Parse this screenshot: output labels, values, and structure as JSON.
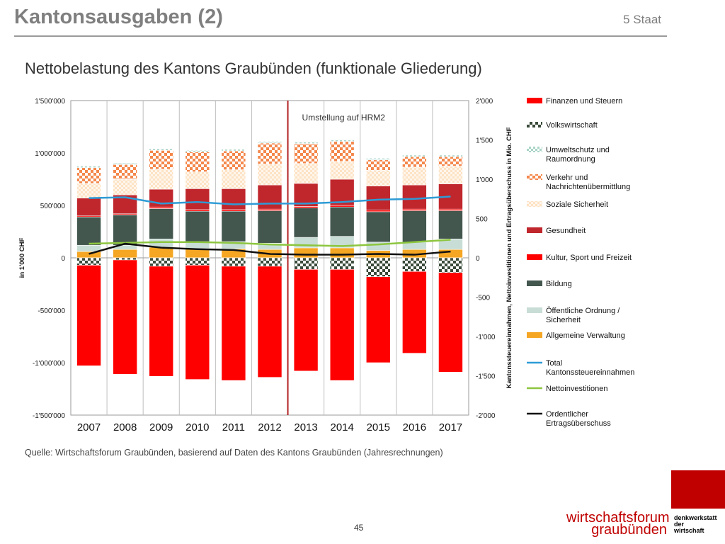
{
  "slide": {
    "title": "Kantonsausgaben (2)",
    "section": "5 Staat",
    "chart_title": "Nettobelastung des Kantons Graubünden (funktionale Gliederung)",
    "source": "Quelle: Wirtschaftsforum Graubünden, basierend auf Daten des Kantons Graubünden (Jahresrechnungen)",
    "page_number": "45"
  },
  "branding": {
    "line1": "wirtschaftsforum",
    "line2": "graubünden",
    "sub1": "denkwerkstatt",
    "sub2": "der",
    "sub3": "wirtschaft",
    "accent_color": "#c00000"
  },
  "chart_data": {
    "type": "bar",
    "stacked": true,
    "categories": [
      "2007",
      "2008",
      "2009",
      "2010",
      "2011",
      "2012",
      "2013",
      "2014",
      "2015",
      "2016",
      "2017"
    ],
    "ylabel": "in 1'000 CHF",
    "ylim": [
      -1500000,
      1500000
    ],
    "yticks": [
      "1'500'000",
      "1'000'000",
      "500'000",
      "0",
      "-500'000",
      "-1'000'000",
      "-1'500'000"
    ],
    "y2label": "Kantonssteuereinnahmen, Nettoinvestitionen und Ertragsüberschuss in Mio. CHF",
    "y2lim": [
      -2000,
      2000
    ],
    "y2ticks": [
      "2'000",
      "1'500",
      "1'000",
      "500",
      "0",
      "-500",
      "-1'000",
      "-1'500",
      "-2'000"
    ],
    "annotation": "Umstellung auf HRM2",
    "annotation_between": [
      "2012",
      "2013"
    ],
    "grid": "vertical",
    "legend_position": "right",
    "bar_series": [
      {
        "name": "Allgemeine Verwaltung",
        "color": "#f5a623",
        "pattern": "solid",
        "values": [
          60000,
          80000,
          100000,
          90000,
          85000,
          80000,
          95000,
          95000,
          70000,
          80000,
          80000
        ]
      },
      {
        "name": "Öffentliche Ordnung / Sicherheit",
        "color": "#c8ddd5",
        "pattern": "solid",
        "values": [
          60000,
          40000,
          80000,
          65000,
          70000,
          60000,
          100000,
          110000,
          80000,
          70000,
          100000
        ]
      },
      {
        "name": "Bildung",
        "color": "#44574f",
        "pattern": "solid",
        "values": [
          270000,
          290000,
          290000,
          290000,
          290000,
          310000,
          280000,
          280000,
          290000,
          300000,
          270000
        ]
      },
      {
        "name": "Kultur, Sport und Freizeit",
        "color": "#ff0000",
        "pattern": "solid",
        "values": [
          10000,
          10000,
          15000,
          15000,
          15000,
          15000,
          15000,
          15000,
          15000,
          15000,
          15000
        ]
      },
      {
        "name": "Gesundheit",
        "color": "#c0272d",
        "pattern": "solid",
        "values": [
          170000,
          180000,
          170000,
          200000,
          200000,
          230000,
          220000,
          250000,
          230000,
          230000,
          240000
        ]
      },
      {
        "name": "Soziale Sicherheit",
        "color": "#fde3c5",
        "pattern": "dots",
        "values": [
          140000,
          150000,
          190000,
          160000,
          180000,
          200000,
          190000,
          170000,
          150000,
          170000,
          170000
        ]
      },
      {
        "name": "Verkehr und Nachrichtenübermittlung",
        "color": "#f4874b",
        "pattern": "checker",
        "values": [
          150000,
          140000,
          180000,
          190000,
          180000,
          200000,
          190000,
          190000,
          100000,
          100000,
          90000
        ]
      },
      {
        "name": "Umweltschutz und Raumordnung",
        "color": "#a9d4c7",
        "pattern": "dots",
        "values": [
          15000,
          15000,
          15000,
          15000,
          15000,
          15000,
          15000,
          15000,
          15000,
          15000,
          15000
        ]
      },
      {
        "name": "Volkswirtschaft",
        "color": "#3a4a3a",
        "pattern": "checker",
        "values": [
          -70000,
          -20000,
          -80000,
          -70000,
          -80000,
          -80000,
          -110000,
          -110000,
          -180000,
          -130000,
          -140000
        ]
      },
      {
        "name": "Finanzen und Steuern",
        "color": "#ff0000",
        "pattern": "solid",
        "values": [
          -960000,
          -1090000,
          -1050000,
          -1090000,
          -1090000,
          -1060000,
          -970000,
          -1060000,
          -820000,
          -780000,
          -950000
        ]
      }
    ],
    "legend_order": [
      "Finanzen und Steuern",
      "Volkswirtschaft",
      "Umweltschutz und Raumordnung",
      "Verkehr und Nachrichtenübermittlung",
      "Soziale Sicherheit",
      "Gesundheit",
      "Kultur, Sport und Freizeit",
      "Bildung",
      "Öffentliche Ordnung / Sicherheit",
      "Allgemeine Verwaltung",
      "Total Kantonssteuereinnahmen",
      "Nettoinvestitionen",
      "Ordentlicher Ertragsüberschuss"
    ],
    "line_series": [
      {
        "name": "Total Kantonssteuereinnahmen",
        "axis": "right",
        "color": "#2e9bd6",
        "values": [
          760,
          770,
          690,
          710,
          680,
          690,
          690,
          710,
          740,
          750,
          780
        ]
      },
      {
        "name": "Nettoinvestitionen",
        "axis": "right",
        "color": "#8dc63f",
        "values": [
          180,
          190,
          200,
          200,
          190,
          170,
          160,
          150,
          170,
          200,
          230
        ]
      },
      {
        "name": "Ordentlicher Ertragsüberschuss",
        "axis": "right",
        "color": "#111111",
        "values": [
          50,
          180,
          130,
          110,
          100,
          50,
          40,
          40,
          50,
          40,
          80
        ]
      }
    ]
  }
}
